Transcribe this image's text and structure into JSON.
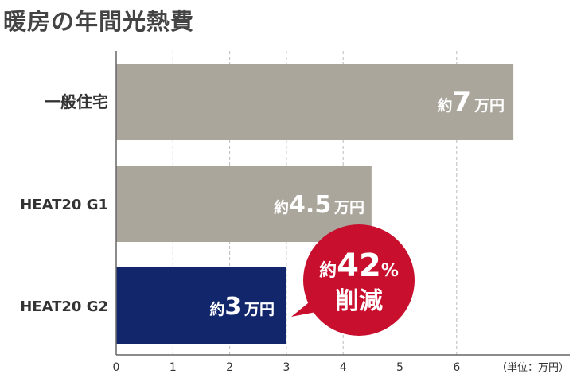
{
  "chart_data": {
    "type": "bar",
    "orientation": "horizontal",
    "title": "暖房の年間光熱費",
    "categories": [
      "一般住宅",
      "HEAT20 G1",
      "HEAT20 G2"
    ],
    "values": [
      7,
      4.5,
      3
    ],
    "bar_labels": [
      {
        "prefix": "約",
        "value": "7",
        "suffix": "万円"
      },
      {
        "prefix": "約",
        "value": "4.5",
        "suffix": "万円"
      },
      {
        "prefix": "約",
        "value": "3",
        "suffix": "万円"
      }
    ],
    "bar_colors": [
      "#aba69c",
      "#aba69c",
      "#12266c"
    ],
    "xlim": [
      0,
      7
    ],
    "x_ticks": [
      "0",
      "1",
      "2",
      "3",
      "4",
      "5",
      "6"
    ],
    "unit_label": "（単位：万円）",
    "grid": "vertical dashed",
    "callout": {
      "prefix": "約",
      "value": "42",
      "suffix": "%",
      "line2": "削減",
      "color": "#c8102e"
    }
  }
}
